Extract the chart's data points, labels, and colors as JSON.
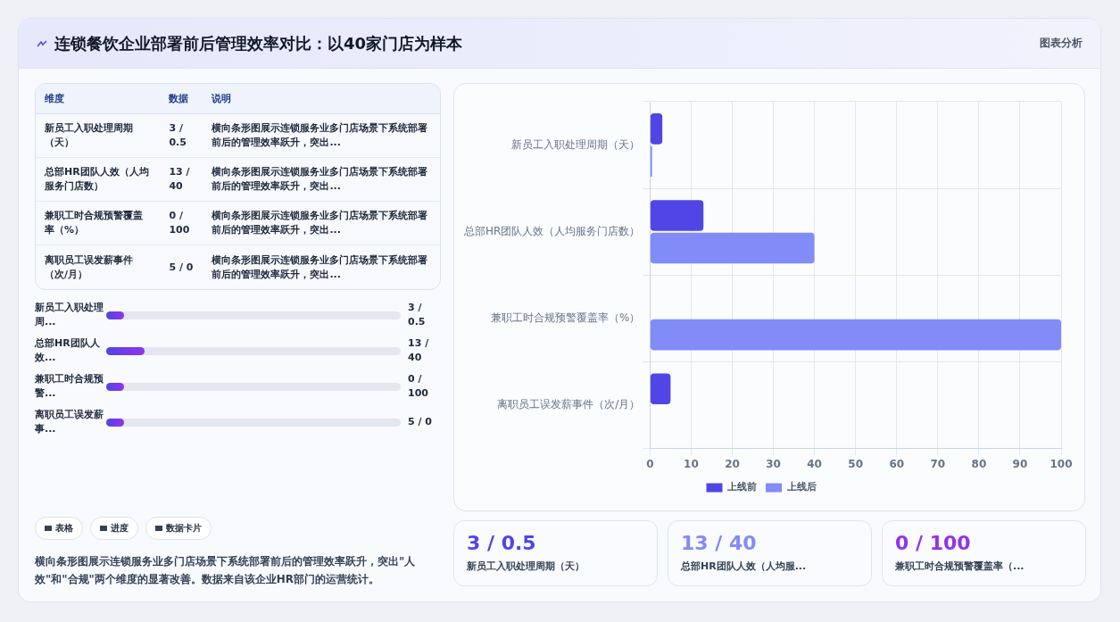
{
  "chart_data": [
    {
      "type": "bar",
      "orientation": "horizontal",
      "title": "连锁餐饮企业部署前后管理效率对比：以40家门店为样本",
      "annotations": [
        "图表分析"
      ],
      "categories": [
        "新员工入职处理周期（天）",
        "总部HR团队人效（人均服务门店数）",
        "兼职工时合规预警覆盖率（%）",
        "离职员工误发薪事件（次/月）"
      ],
      "series": [
        {
          "name": "上线前",
          "color": "#4f46e5",
          "values": [
            3,
            13,
            0,
            5
          ]
        },
        {
          "name": "上线后",
          "color": "#818cf8",
          "values": [
            0.5,
            40,
            100,
            0
          ]
        }
      ],
      "xlim": [
        0,
        100
      ],
      "xticks": [
        0,
        10,
        20,
        30,
        40,
        50,
        60,
        70,
        80,
        90,
        100
      ],
      "grid": true,
      "legend": "bottom"
    },
    {
      "type": "other",
      "annotations": [
        "维度",
        "数据",
        "说明",
        "新员工入职处理周期（天）",
        "3 / 0.5",
        "横向条形图展示连锁服务业多门店场景下系统部署前后的管理效率跃升，突出...",
        "总部HR团队人效（人均服务门店数）",
        "13 / 40",
        "横向条形图展示连锁服务业多门店场景下系统部署前后的管理效率跃升，突出...",
        "兼职工时合规预警覆盖率（%）",
        "0 / 100",
        "横向条形图展示连锁服务业多门店场景下系统部署前后的管理效率跃升，突出...",
        "离职员工误发薪事件（次/月）",
        "5 / 0",
        "横向条形图展示连锁服务业多门店场景下系统部署前后的管理效率跃升，突出...",
        "新员工入职处理周...",
        "3 / 0.5",
        "总部HR团队人效...",
        "13 / 40",
        "兼职工时合规预警...",
        "0 / 100",
        "离职员工误发薪事...",
        "5 / 0",
        "表格",
        "进度",
        "数据卡片",
        "横向条形图展示连锁服务业多门店场景下系统部署前后的管理效率跃升，突出\"人效\"和\"合规\"两个维度的显著改善。数据来自该企业HR部门的运营统计。",
        "3 / 0.5",
        "新员工入职处理周期（天）",
        "13 / 40",
        "总部HR团队人效（人均服...",
        "0 / 100",
        "兼职工时合规预警覆盖率（..."
      ]
    }
  ]
}
